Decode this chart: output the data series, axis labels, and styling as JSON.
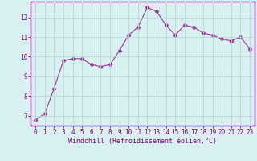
{
  "x": [
    0,
    1,
    2,
    3,
    4,
    5,
    6,
    7,
    8,
    9,
    10,
    11,
    12,
    13,
    14,
    15,
    16,
    17,
    18,
    19,
    20,
    21,
    22,
    23
  ],
  "y": [
    6.8,
    7.1,
    8.4,
    9.8,
    9.9,
    9.9,
    9.6,
    9.5,
    9.6,
    10.3,
    11.1,
    11.5,
    12.5,
    12.3,
    11.6,
    11.1,
    11.6,
    11.5,
    11.2,
    11.1,
    10.9,
    10.8,
    11.0,
    10.4
  ],
  "line_color": "#993399",
  "marker": "D",
  "marker_size": 2.5,
  "bg_color": "#d8f0f0",
  "grid_color": "#b8d8d8",
  "xlabel": "Windchill (Refroidissement éolien,°C)",
  "xlim": [
    -0.5,
    23.5
  ],
  "ylim": [
    6.5,
    12.8
  ],
  "yticks": [
    7,
    8,
    9,
    10,
    11,
    12
  ],
  "xticks": [
    0,
    1,
    2,
    3,
    4,
    5,
    6,
    7,
    8,
    9,
    10,
    11,
    12,
    13,
    14,
    15,
    16,
    17,
    18,
    19,
    20,
    21,
    22,
    23
  ],
  "tick_fontsize": 5.5,
  "xlabel_fontsize": 6.0,
  "tick_color": "#800080",
  "xlabel_color": "#800080",
  "spine_color": "#800080"
}
